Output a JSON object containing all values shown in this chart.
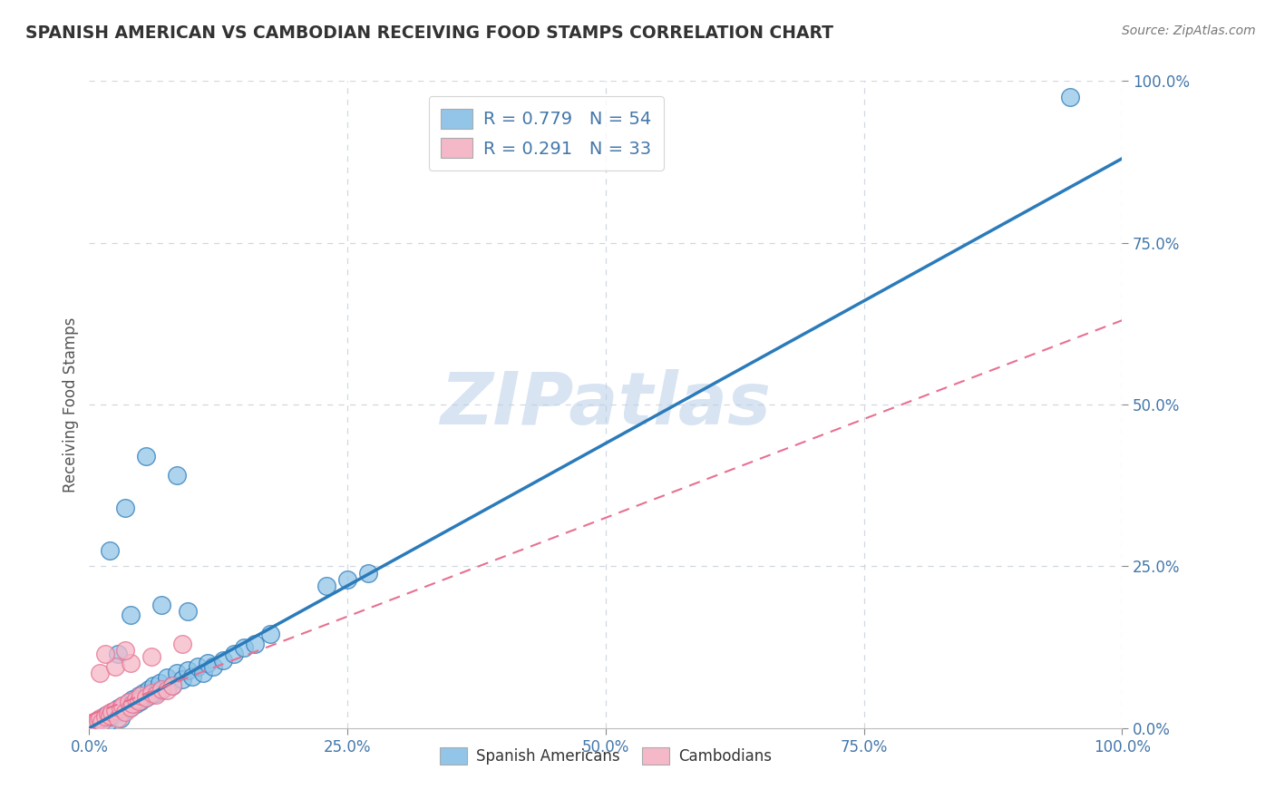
{
  "title": "SPANISH AMERICAN VS CAMBODIAN RECEIVING FOOD STAMPS CORRELATION CHART",
  "source": "Source: ZipAtlas.com",
  "ylabel": "Receiving Food Stamps",
  "legend_label1": "Spanish Americans",
  "legend_label2": "Cambodians",
  "legend_R1": "R = 0.779",
  "legend_N1": "N = 54",
  "legend_R2": "R = 0.291",
  "legend_N2": "N = 33",
  "color_blue": "#92c5e8",
  "color_pink": "#f4b8c8",
  "line_blue": "#2b7bba",
  "line_pink": "#e87090",
  "watermark": "ZIPatlas",
  "background_color": "#ffffff",
  "grid_color": "#d0d8e0",
  "title_color": "#333333",
  "text_color": "#4477aa",
  "blue_scatter_x": [
    0.005,
    0.008,
    0.01,
    0.012,
    0.015,
    0.018,
    0.02,
    0.022,
    0.025,
    0.028,
    0.03,
    0.032,
    0.035,
    0.038,
    0.04,
    0.042,
    0.045,
    0.048,
    0.05,
    0.052,
    0.055,
    0.058,
    0.06,
    0.062,
    0.065,
    0.068,
    0.07,
    0.075,
    0.08,
    0.085,
    0.09,
    0.095,
    0.1,
    0.105,
    0.11,
    0.115,
    0.12,
    0.13,
    0.14,
    0.15,
    0.16,
    0.175,
    0.02,
    0.035,
    0.055,
    0.085,
    0.23,
    0.25,
    0.27,
    0.04,
    0.07,
    0.095,
    0.95,
    0.028
  ],
  "blue_scatter_y": [
    0.005,
    0.012,
    0.008,
    0.015,
    0.02,
    0.01,
    0.018,
    0.025,
    0.022,
    0.03,
    0.015,
    0.035,
    0.028,
    0.04,
    0.032,
    0.045,
    0.038,
    0.05,
    0.042,
    0.055,
    0.048,
    0.06,
    0.052,
    0.065,
    0.055,
    0.07,
    0.058,
    0.078,
    0.065,
    0.085,
    0.075,
    0.09,
    0.08,
    0.095,
    0.085,
    0.1,
    0.095,
    0.105,
    0.115,
    0.125,
    0.13,
    0.145,
    0.275,
    0.34,
    0.42,
    0.39,
    0.22,
    0.23,
    0.24,
    0.175,
    0.19,
    0.18,
    0.975,
    0.115
  ],
  "pink_scatter_x": [
    0.003,
    0.005,
    0.008,
    0.01,
    0.012,
    0.015,
    0.018,
    0.02,
    0.022,
    0.025,
    0.028,
    0.03,
    0.032,
    0.035,
    0.038,
    0.04,
    0.042,
    0.045,
    0.048,
    0.05,
    0.055,
    0.06,
    0.065,
    0.07,
    0.075,
    0.08,
    0.01,
    0.025,
    0.04,
    0.015,
    0.035,
    0.06,
    0.09
  ],
  "pink_scatter_y": [
    0.005,
    0.008,
    0.012,
    0.015,
    0.01,
    0.018,
    0.022,
    0.02,
    0.025,
    0.028,
    0.015,
    0.03,
    0.035,
    0.025,
    0.04,
    0.032,
    0.038,
    0.045,
    0.042,
    0.05,
    0.048,
    0.055,
    0.052,
    0.06,
    0.058,
    0.065,
    0.085,
    0.095,
    0.1,
    0.115,
    0.12,
    0.11,
    0.13
  ],
  "blue_line": [
    0.0,
    0.0,
    1.0,
    0.88
  ],
  "pink_line": [
    0.0,
    0.02,
    1.0,
    0.63
  ],
  "xlim": [
    0.0,
    1.0
  ],
  "ylim": [
    0.0,
    1.0
  ]
}
